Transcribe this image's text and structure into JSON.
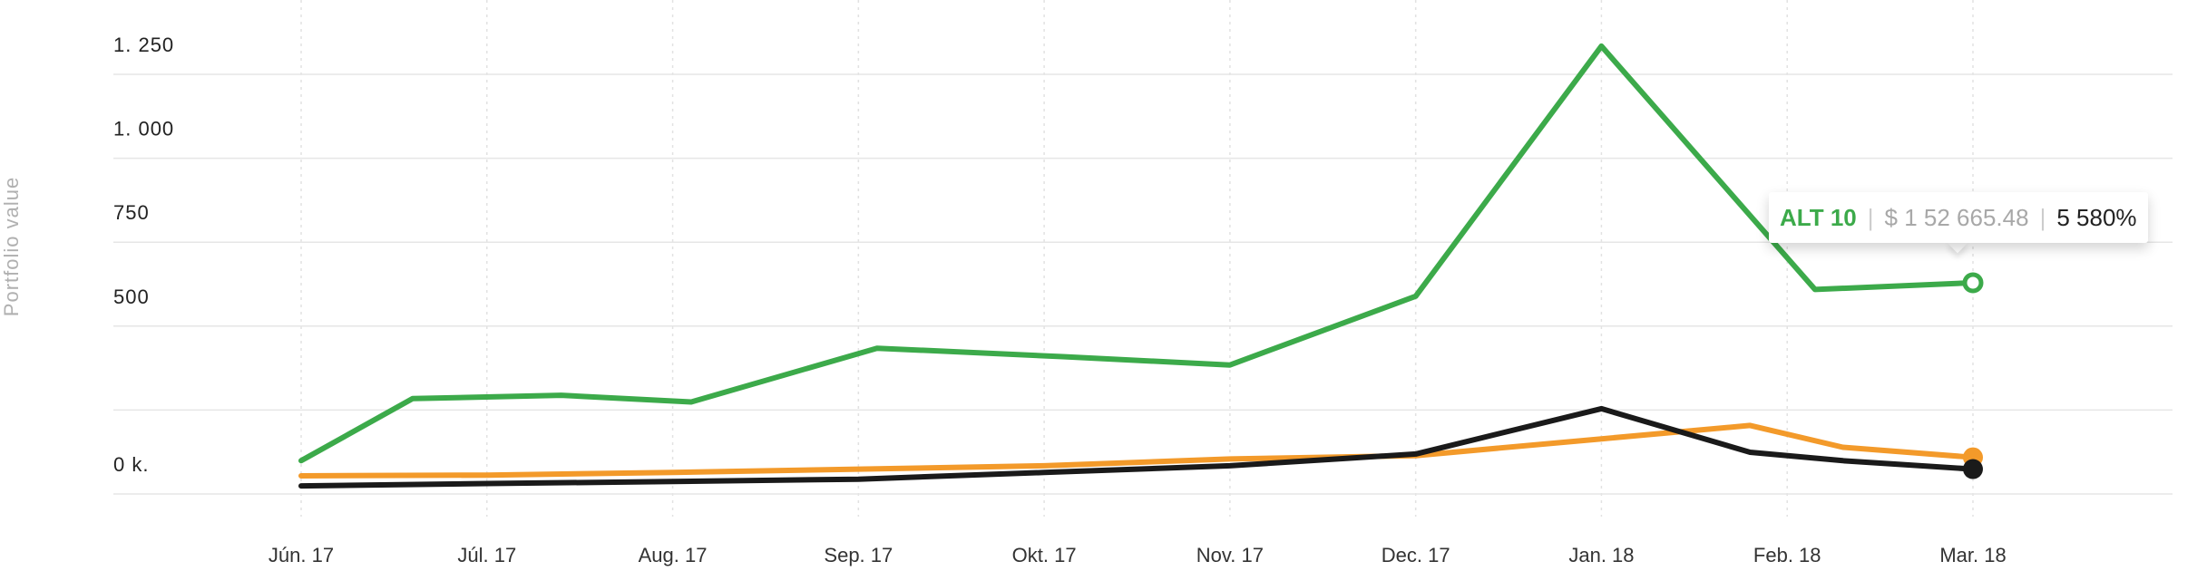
{
  "chart_data": {
    "type": "line",
    "ylabel": "Portfolio value",
    "xlabel": "",
    "title": "",
    "grid": true,
    "categories": [
      "Jún. 17",
      "Júl. 17",
      "Aug. 17",
      "Sep. 17",
      "Okt. 17",
      "Nov. 17",
      "Dec. 17",
      "Jan. 18",
      "Feb. 18",
      "Mar. 18"
    ],
    "yticks": [
      {
        "value": 0,
        "label": "0 k."
      },
      {
        "value": 250,
        "label": ""
      },
      {
        "value": 500,
        "label": "500"
      },
      {
        "value": 750,
        "label": "750"
      },
      {
        "value": 1000,
        "label": "1. 000"
      },
      {
        "value": 1250,
        "label": "1. 250"
      }
    ],
    "ylim": [
      -80,
      1330
    ],
    "xlim": [
      -0.13,
      9.2
    ],
    "series": [
      {
        "name": "ALT 10",
        "color": "#3caa4a",
        "x": [
          0,
          0.6,
          1.4,
          2.1,
          3.1,
          4.1,
          5.0,
          6.0,
          7.0,
          8.15,
          9.0
        ],
        "values": [
          10,
          195,
          205,
          185,
          345,
          320,
          295,
          500,
          1245,
          520,
          540
        ]
      },
      {
        "color": "#f39a2a",
        "x": [
          0,
          1,
          2,
          3,
          4,
          5,
          6,
          7,
          7.8,
          8.3,
          9.0
        ],
        "values": [
          -35,
          -33,
          -25,
          -15,
          -5,
          15,
          25,
          75,
          115,
          50,
          20
        ]
      },
      {
        "color": "#1a1a1a",
        "x": [
          0,
          1,
          2,
          3,
          4,
          5,
          6,
          7,
          7.8,
          8.3,
          9.0
        ],
        "values": [
          -65,
          -58,
          -52,
          -45,
          -25,
          -5,
          30,
          165,
          35,
          10,
          -15
        ]
      }
    ],
    "tooltip": {
      "series_name": "ALT 10",
      "value": "$ 1 52 665.48",
      "percent": "5 580%"
    }
  }
}
